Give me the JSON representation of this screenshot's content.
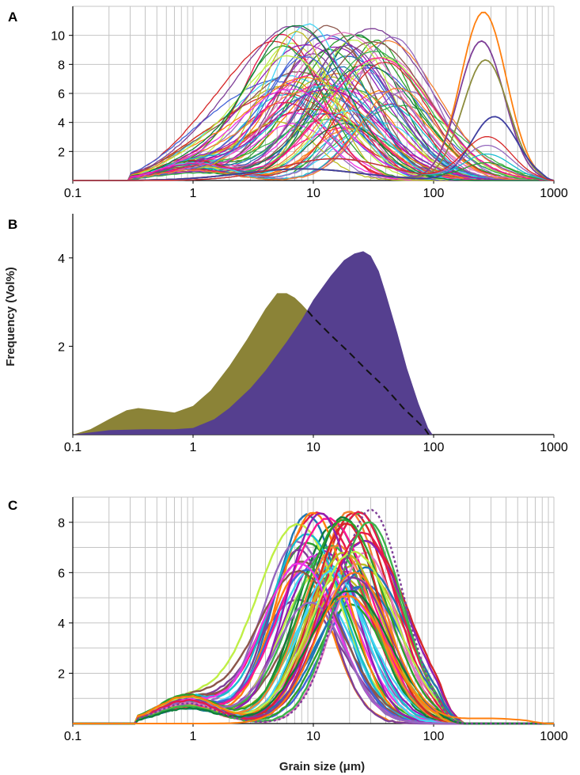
{
  "ylabel": "Frequency (Vol%)",
  "xlabel": "Grain size  (μm)",
  "colors": {
    "olive_fill": "#8b8337",
    "purple_fill": "#553f8f",
    "dash": "#111111",
    "series_palette": [
      "#d62728",
      "#1f77b4",
      "#2ca02c",
      "#9467bd",
      "#ff7f0e",
      "#17becf",
      "#e377c2",
      "#8c564b",
      "#bcbd22",
      "#7f3f98",
      "#e6194b",
      "#3cb44b",
      "#4363d8",
      "#f58231",
      "#911eb4",
      "#42d4f4",
      "#f032e6",
      "#bfef45",
      "#0f7d3a",
      "#ff1493"
    ]
  },
  "chart_data": [
    {
      "panel": "A",
      "type": "line",
      "xscale": "log",
      "xlim": [
        0.1,
        1000
      ],
      "ylim": [
        0,
        12
      ],
      "xticks": [
        "0.1",
        "1",
        "10",
        "100",
        "1000"
      ],
      "yticks": [
        "2",
        "4",
        "6",
        "8",
        "10"
      ],
      "title": "",
      "series_count": 80,
      "highlighted_series": [
        {
          "name": "coarse mode peak 1",
          "color": "#ff7f0e",
          "mode_um": 260,
          "peak": 11.6
        },
        {
          "name": "coarse mode peak 2",
          "color": "#7f3f98",
          "mode_um": 250,
          "peak": 9.6
        },
        {
          "name": "coarse mode peak 3",
          "color": "#8c8c3c",
          "mode_um": 270,
          "peak": 8.3
        },
        {
          "name": "coarse mode peak 4",
          "color": "#3f3fa0",
          "mode_um": 320,
          "peak": 4.4
        }
      ]
    },
    {
      "panel": "B",
      "type": "area",
      "xscale": "log",
      "xlim": [
        0.1,
        1000
      ],
      "ylim": [
        0,
        5
      ],
      "xticks": [
        "0.1",
        "1",
        "10",
        "100",
        "1000"
      ],
      "yticks": [
        "2",
        "4"
      ],
      "series": [
        {
          "name": "olive distribution",
          "color": "#8b8337",
          "x": [
            0.1,
            0.14,
            0.2,
            0.28,
            0.35,
            0.5,
            0.7,
            1.0,
            1.4,
            2.0,
            2.8,
            4.0,
            5.0,
            6.0,
            7.0,
            8.0,
            9.0,
            10.0,
            14.0,
            20.0,
            28.0,
            40.0,
            56.0,
            70.0,
            85.0,
            91.0
          ],
          "values": [
            0.0,
            0.12,
            0.35,
            0.55,
            0.6,
            0.55,
            0.5,
            0.65,
            1.0,
            1.55,
            2.15,
            2.85,
            3.2,
            3.2,
            3.1,
            2.95,
            2.8,
            2.65,
            2.25,
            1.85,
            1.45,
            1.05,
            0.6,
            0.35,
            0.12,
            0.0
          ]
        },
        {
          "name": "purple distribution",
          "color": "#553f8f",
          "x": [
            0.1,
            0.2,
            0.4,
            0.7,
            1.0,
            1.5,
            2.0,
            3.0,
            4.0,
            6.0,
            8.0,
            10.0,
            14.0,
            18.0,
            22.0,
            26.0,
            30.0,
            35.0,
            40.0,
            50.0,
            60.0,
            75.0,
            90.0,
            98.0
          ],
          "values": [
            0.0,
            0.1,
            0.12,
            0.12,
            0.15,
            0.35,
            0.6,
            1.05,
            1.45,
            2.1,
            2.6,
            3.05,
            3.6,
            3.95,
            4.1,
            4.15,
            4.05,
            3.7,
            3.2,
            2.3,
            1.5,
            0.7,
            0.15,
            0.0
          ]
        }
      ]
    },
    {
      "panel": "C",
      "type": "line",
      "xscale": "log",
      "xlim": [
        0.1,
        1000
      ],
      "ylim": [
        0,
        9
      ],
      "xticks": [
        "0.1",
        "1",
        "10",
        "100",
        "1000"
      ],
      "yticks": [
        "2",
        "4",
        "6",
        "8"
      ],
      "series_count": 55,
      "peak_range": [
        4.7,
        8.6
      ],
      "mode_range_um": [
        7,
        30
      ]
    }
  ]
}
